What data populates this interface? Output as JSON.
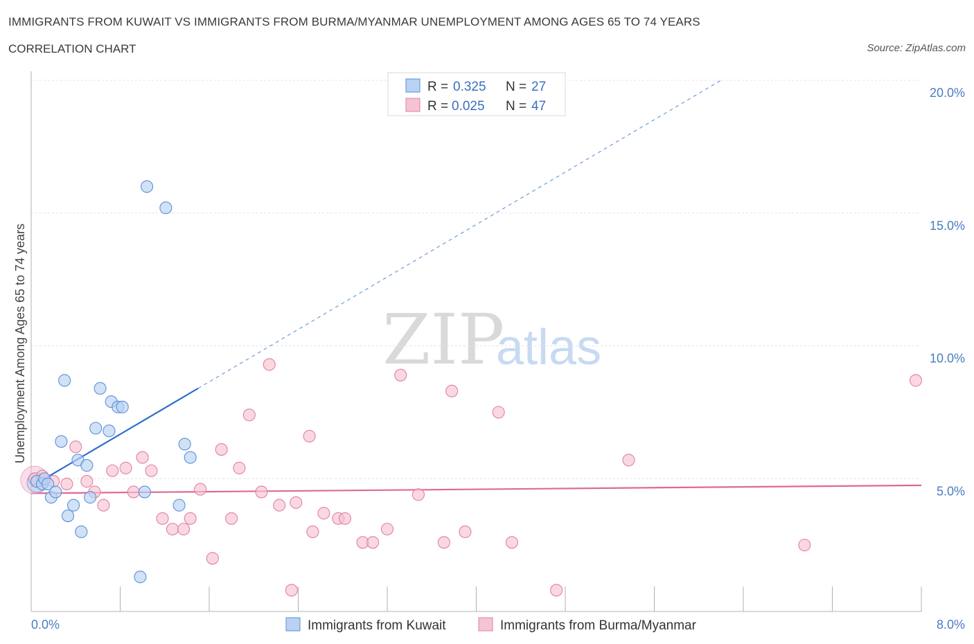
{
  "title": "IMMIGRANTS FROM KUWAIT VS IMMIGRANTS FROM BURMA/MYANMAR UNEMPLOYMENT AMONG AGES 65 TO 74 YEARS",
  "subtitle": "CORRELATION CHART",
  "source": "Source: ZipAtlas.com",
  "watermark": {
    "zip": "ZIP",
    "atlas": "atlas"
  },
  "chart_data": {
    "type": "scatter",
    "xlabel": "",
    "ylabel": "Unemployment Among Ages 65 to 74 years",
    "xlim": [
      0,
      8
    ],
    "ylim": [
      0,
      20
    ],
    "x_tick_labels": [
      "0.0%",
      "8.0%"
    ],
    "y_ticks": [
      5,
      10,
      15,
      20
    ],
    "y_tick_labels": [
      "5.0%",
      "10.0%",
      "15.0%",
      "20.0%"
    ],
    "grid": true,
    "legend": {
      "r_label": "R =",
      "n_label": "N =",
      "position": "top-center"
    },
    "series": [
      {
        "name": "Immigrants from Kuwait",
        "color": "#5b8fd6",
        "fill": "#b9d2f3",
        "r": "0.325",
        "n": "27",
        "trend": {
          "x0": 0.0,
          "y0": 4.7,
          "x1": 1.5,
          "y1": 8.4,
          "dash_to_x": 6.2,
          "dash_to_y": 20.0
        },
        "points": [
          [
            0.05,
            4.9
          ],
          [
            0.1,
            4.8
          ],
          [
            0.12,
            5.0
          ],
          [
            0.15,
            4.8
          ],
          [
            0.18,
            4.3
          ],
          [
            0.22,
            4.5
          ],
          [
            0.27,
            6.4
          ],
          [
            0.3,
            8.7
          ],
          [
            0.33,
            3.6
          ],
          [
            0.38,
            4.0
          ],
          [
            0.42,
            5.7
          ],
          [
            0.45,
            3.0
          ],
          [
            0.5,
            5.5
          ],
          [
            0.53,
            4.3
          ],
          [
            0.58,
            6.9
          ],
          [
            0.62,
            8.4
          ],
          [
            0.7,
            6.8
          ],
          [
            0.72,
            7.9
          ],
          [
            0.78,
            7.7
          ],
          [
            0.82,
            7.7
          ],
          [
            0.98,
            1.3
          ],
          [
            1.02,
            4.5
          ],
          [
            1.04,
            16.0
          ],
          [
            1.21,
            15.2
          ],
          [
            1.33,
            4.0
          ],
          [
            1.38,
            6.3
          ],
          [
            1.43,
            5.8
          ]
        ]
      },
      {
        "name": "Immigrants from Burma/Myanmar",
        "color": "#e37fa1",
        "fill": "#f6c3d3",
        "r": "0.025",
        "n": "47",
        "trend": {
          "x0": 0.0,
          "y0": 4.45,
          "x1": 8.0,
          "y1": 4.75
        },
        "points": [
          [
            0.03,
            5.0
          ],
          [
            0.1,
            5.1
          ],
          [
            0.2,
            4.9
          ],
          [
            0.32,
            4.8
          ],
          [
            0.4,
            6.2
          ],
          [
            0.5,
            4.9
          ],
          [
            0.57,
            4.5
          ],
          [
            0.65,
            4.0
          ],
          [
            0.73,
            5.3
          ],
          [
            0.85,
            5.4
          ],
          [
            0.92,
            4.5
          ],
          [
            1.0,
            5.8
          ],
          [
            1.08,
            5.3
          ],
          [
            1.18,
            3.5
          ],
          [
            1.27,
            3.1
          ],
          [
            1.37,
            3.1
          ],
          [
            1.43,
            3.5
          ],
          [
            1.52,
            4.6
          ],
          [
            1.63,
            2.0
          ],
          [
            1.71,
            6.1
          ],
          [
            1.8,
            3.5
          ],
          [
            1.87,
            5.4
          ],
          [
            1.96,
            7.4
          ],
          [
            2.07,
            4.5
          ],
          [
            2.14,
            9.3
          ],
          [
            2.23,
            4.0
          ],
          [
            2.34,
            0.8
          ],
          [
            2.38,
            4.1
          ],
          [
            2.5,
            6.6
          ],
          [
            2.53,
            3.0
          ],
          [
            2.63,
            3.7
          ],
          [
            2.76,
            3.5
          ],
          [
            2.82,
            3.5
          ],
          [
            2.98,
            2.6
          ],
          [
            3.07,
            2.6
          ],
          [
            3.2,
            3.1
          ],
          [
            3.32,
            8.9
          ],
          [
            3.48,
            4.4
          ],
          [
            3.71,
            2.6
          ],
          [
            3.78,
            8.3
          ],
          [
            3.9,
            3.0
          ],
          [
            4.2,
            7.5
          ],
          [
            4.32,
            2.6
          ],
          [
            4.72,
            0.8
          ],
          [
            5.37,
            5.7
          ],
          [
            6.95,
            2.5
          ],
          [
            7.95,
            8.7
          ]
        ]
      }
    ]
  }
}
